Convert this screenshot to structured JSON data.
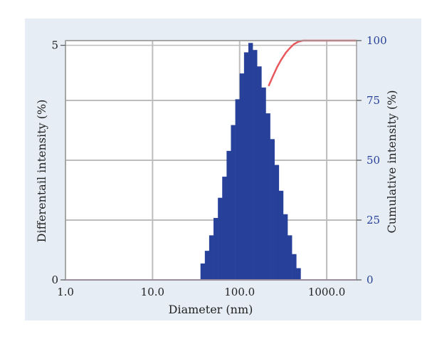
{
  "chart_data": {
    "type": "bar",
    "xlabel": "Diameter (nm)",
    "ylabel_left": "Differentail intensity (%)",
    "ylabel_right": "Cumulative intensity (%)",
    "x_scale": "log",
    "xlim": [
      1.0,
      2200
    ],
    "x_ticks": [
      "1.0",
      "10.0",
      "100.0",
      "1000.0"
    ],
    "y_left_ticks": [
      "0",
      "5"
    ],
    "y_left_lim": [
      0,
      5.1
    ],
    "y_right_ticks": [
      "0",
      "25",
      "50",
      "75",
      "100"
    ],
    "y_right_lim": [
      0,
      100
    ],
    "grid": true,
    "colors": {
      "bars": "#27419a",
      "cumulative": "#e8595d",
      "baseline": "#8a5aa0",
      "frame_bg": "#e6edf5",
      "grid": "#bdbdbd",
      "right_axis_text": "#27419a"
    },
    "bars_series": {
      "name": "Differential intensity",
      "x": [
        37.6,
        42.2,
        47.3,
        53.1,
        59.6,
        66.8,
        75.0,
        84.1,
        94.4,
        105.9,
        118.9,
        133.4,
        149.6,
        167.9,
        188.4,
        211.3,
        237.1,
        266.1,
        298.5,
        335.0,
        375.8,
        421.7,
        473.2
      ],
      "values": [
        0.35,
        0.62,
        0.95,
        1.32,
        1.75,
        2.2,
        2.75,
        3.3,
        3.85,
        4.4,
        4.85,
        5.05,
        4.9,
        4.55,
        4.1,
        3.55,
        3.0,
        2.45,
        1.9,
        1.4,
        0.95,
        0.55,
        0.25
      ]
    },
    "cumulative_series": {
      "name": "Cumulative intensity",
      "x": [
        215,
        240,
        270,
        300,
        340,
        380,
        420,
        470,
        530,
        600,
        800,
        1200,
        2200
      ],
      "values": [
        81,
        85,
        89,
        92,
        95,
        97,
        98.5,
        99.5,
        100,
        100,
        100,
        100,
        100
      ]
    }
  }
}
